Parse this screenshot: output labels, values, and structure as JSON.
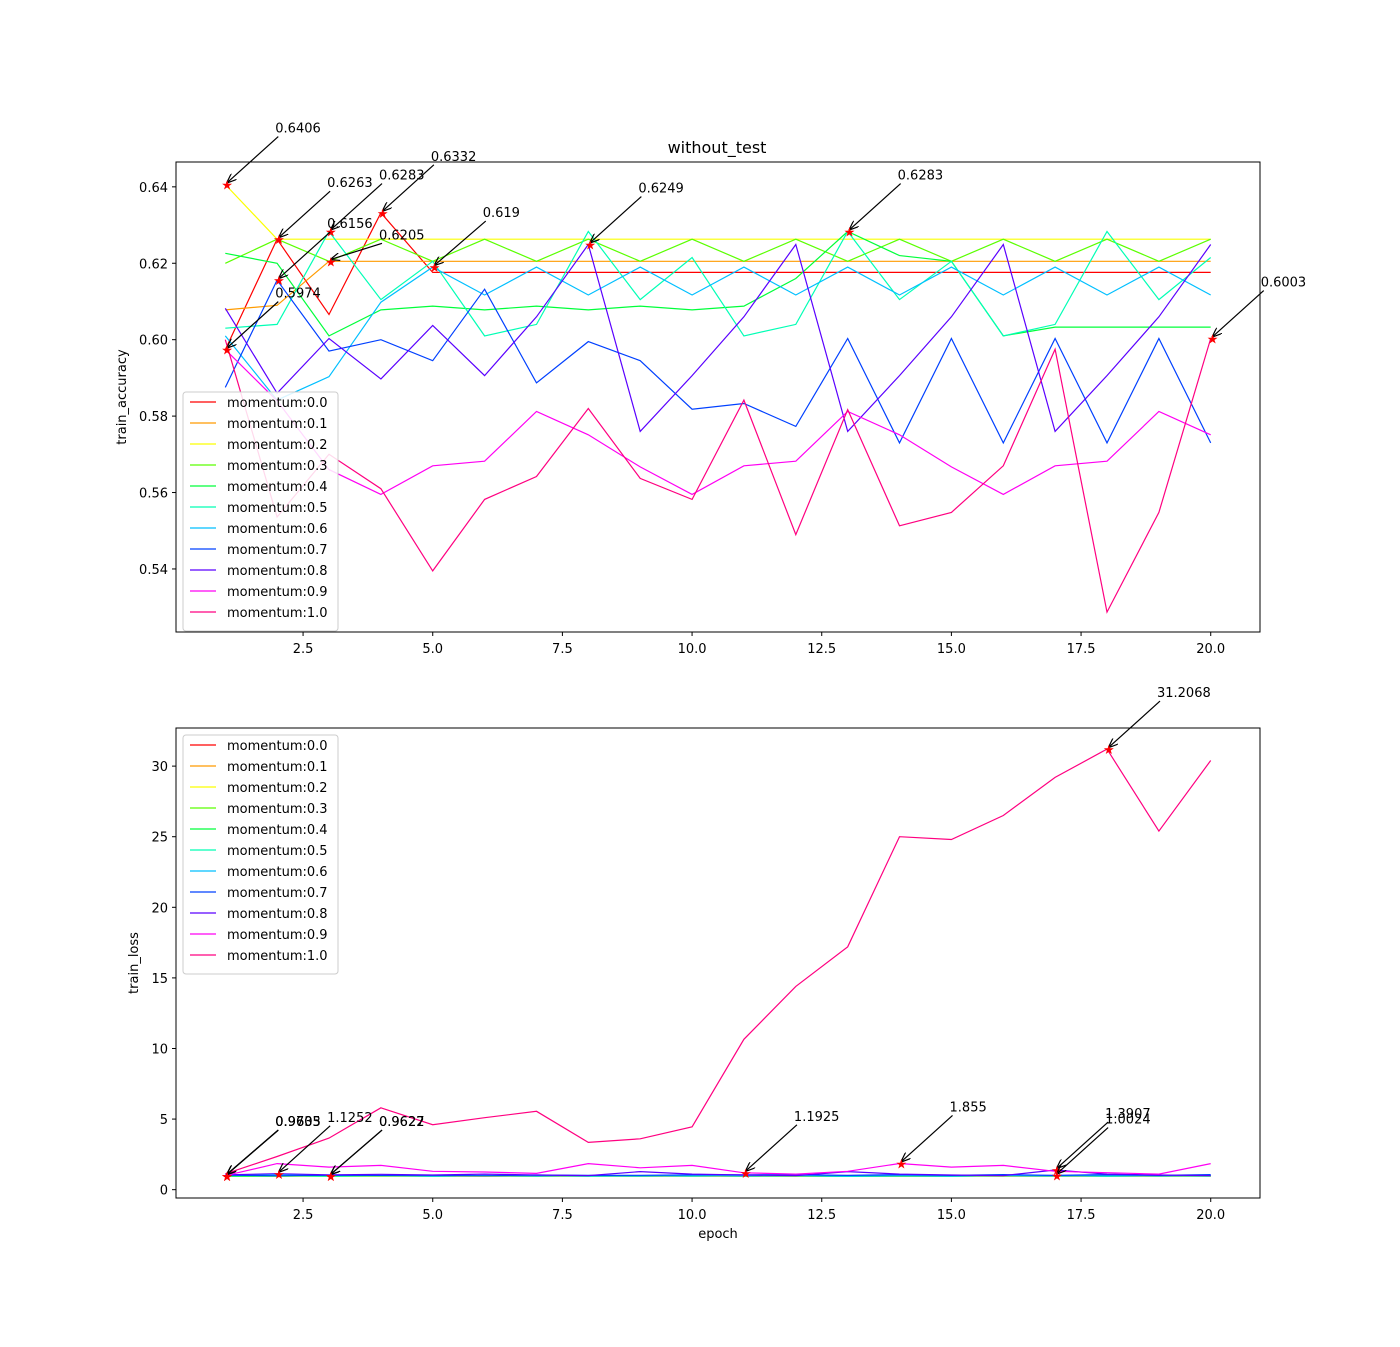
{
  "figure_title": "without_test",
  "chart_data": [
    {
      "type": "line",
      "title": "without_test",
      "xlabel": "",
      "ylabel": "train_accuracy",
      "xlim": [
        0.05,
        20.95
      ],
      "ylim": [
        0.5235,
        0.6465
      ],
      "xticks": [
        2.5,
        5.0,
        7.5,
        10.0,
        12.5,
        15.0,
        17.5,
        20.0
      ],
      "xtick_labels": [
        "2.5",
        "5.0",
        "7.5",
        "10.0",
        "12.5",
        "15.0",
        "17.5",
        "20.0"
      ],
      "yticks": [
        0.54,
        0.56,
        0.58,
        0.6,
        0.62,
        0.64
      ],
      "ytick_labels": [
        "0.54",
        "0.56",
        "0.58",
        "0.60",
        "0.62",
        "0.64"
      ],
      "legend_position": "lower-left",
      "x": [
        1,
        2,
        3,
        4,
        5,
        6,
        7,
        8,
        9,
        10,
        11,
        12,
        13,
        14,
        15,
        16,
        17,
        18,
        19,
        20
      ],
      "series": [
        {
          "name": "momentum:0.0",
          "color": "#ff0000",
          "values": [
            0.5974,
            0.6263,
            0.6066,
            0.6332,
            0.6176,
            0.6176,
            0.6176,
            0.6176,
            0.6176,
            0.6176,
            0.6176,
            0.6176,
            0.6176,
            0.6176,
            0.6176,
            0.6176,
            0.6176,
            0.6176,
            0.6176,
            0.6176
          ]
        },
        {
          "name": "momentum:0.1",
          "color": "#ff9b00",
          "values": [
            0.6078,
            0.609,
            0.6205,
            0.6205,
            0.6205,
            0.6205,
            0.6205,
            0.6205,
            0.6205,
            0.6205,
            0.6205,
            0.6205,
            0.6205,
            0.6205,
            0.6205,
            0.6205,
            0.6205,
            0.6205,
            0.6205,
            0.6205
          ]
        },
        {
          "name": "momentum:0.2",
          "color": "#fcff00",
          "values": [
            0.6406,
            0.6263,
            0.6263,
            0.6263,
            0.6263,
            0.6263,
            0.6263,
            0.6263,
            0.6263,
            0.6263,
            0.6263,
            0.6263,
            0.6263,
            0.6263,
            0.6263,
            0.6263,
            0.6263,
            0.6263,
            0.6263,
            0.6263
          ]
        },
        {
          "name": "momentum:0.3",
          "color": "#5aff00",
          "values": [
            0.62,
            0.6263,
            0.6205,
            0.6263,
            0.6205,
            0.6263,
            0.6205,
            0.6263,
            0.6205,
            0.6263,
            0.6205,
            0.6263,
            0.6205,
            0.6263,
            0.6205,
            0.6263,
            0.6205,
            0.6263,
            0.6205,
            0.6263
          ]
        },
        {
          "name": "momentum:0.4",
          "color": "#00ff3a",
          "values": [
            0.6226,
            0.62,
            0.601,
            0.6078,
            0.6088,
            0.6078,
            0.6088,
            0.6078,
            0.6088,
            0.6078,
            0.6088,
            0.616,
            0.6283,
            0.622,
            0.6205,
            0.601,
            0.6033,
            0.6033,
            0.6033,
            0.6033
          ]
        },
        {
          "name": "momentum:0.5",
          "color": "#00ffb5",
          "values": [
            0.603,
            0.604,
            0.6283,
            0.6105,
            0.6205,
            0.601,
            0.604,
            0.6283,
            0.6105,
            0.6215,
            0.601,
            0.604,
            0.6283,
            0.6105,
            0.6205,
            0.601,
            0.604,
            0.6283,
            0.6105,
            0.6215
          ]
        },
        {
          "name": "momentum:0.6",
          "color": "#00bfff",
          "values": [
            0.601,
            0.5842,
            0.5903,
            0.6098,
            0.619,
            0.6117,
            0.619,
            0.6117,
            0.619,
            0.6117,
            0.619,
            0.6117,
            0.619,
            0.6117,
            0.619,
            0.6117,
            0.619,
            0.6117,
            0.619,
            0.6117
          ]
        },
        {
          "name": "momentum:0.7",
          "color": "#0040ff",
          "values": [
            0.5875,
            0.6156,
            0.597,
            0.6,
            0.5945,
            0.6132,
            0.5887,
            0.5995,
            0.5945,
            0.5818,
            0.5833,
            0.5773,
            0.6003,
            0.573,
            0.6003,
            0.573,
            0.6003,
            0.573,
            0.6003,
            0.573
          ]
        },
        {
          "name": "momentum:0.8",
          "color": "#5a00ff",
          "values": [
            0.6082,
            0.586,
            0.6003,
            0.5897,
            0.6037,
            0.5906,
            0.606,
            0.6249,
            0.576,
            0.5906,
            0.606,
            0.6249,
            0.576,
            0.5906,
            0.606,
            0.6249,
            0.576,
            0.5906,
            0.606,
            0.6249
          ]
        },
        {
          "name": "momentum:0.9",
          "color": "#ff00f3",
          "values": [
            0.5974,
            0.584,
            0.566,
            0.5595,
            0.567,
            0.5682,
            0.5812,
            0.5751,
            0.5667,
            0.5595,
            0.567,
            0.5682,
            0.5812,
            0.5751,
            0.5667,
            0.5595,
            0.567,
            0.5682,
            0.5812,
            0.5751
          ]
        },
        {
          "name": "momentum:1.0",
          "color": "#ff0080",
          "values": [
            0.6,
            0.5536,
            0.57,
            0.561,
            0.5395,
            0.5582,
            0.5642,
            0.582,
            0.5637,
            0.5582,
            0.5842,
            0.549,
            0.5817,
            0.5513,
            0.5548,
            0.567,
            0.5975,
            0.5287,
            0.5548,
            0.6003
          ]
        }
      ],
      "markers": [
        {
          "x": 1,
          "y": 0.6406,
          "label": "0.6406"
        },
        {
          "x": 2,
          "y": 0.6263,
          "label": "0.6263"
        },
        {
          "x": 3,
          "y": 0.6283,
          "label": "0.6283"
        },
        {
          "x": 4,
          "y": 0.6332,
          "label": "0.6332"
        },
        {
          "x": 3,
          "y": 0.6205,
          "label": "0.6205"
        },
        {
          "x": 2,
          "y": 0.6156,
          "label": "0.6156"
        },
        {
          "x": 5,
          "y": 0.619,
          "label": "0.619"
        },
        {
          "x": 8,
          "y": 0.6249,
          "label": "0.6249"
        },
        {
          "x": 13,
          "y": 0.6283,
          "label": "0.6283"
        },
        {
          "x": 1,
          "y": 0.5974,
          "label": "0.5974"
        },
        {
          "x": 20,
          "y": 0.6003,
          "label": "0.6003"
        }
      ]
    },
    {
      "type": "line",
      "title": "",
      "xlabel": "epoch",
      "ylabel": "train_loss",
      "xlim": [
        0.05,
        20.95
      ],
      "ylim": [
        -0.59,
        32.7
      ],
      "xticks": [
        2.5,
        5.0,
        7.5,
        10.0,
        12.5,
        15.0,
        17.5,
        20.0
      ],
      "xtick_labels": [
        "2.5",
        "5.0",
        "7.5",
        "10.0",
        "12.5",
        "15.0",
        "17.5",
        "20.0"
      ],
      "yticks": [
        0,
        5,
        10,
        15,
        20,
        25,
        30
      ],
      "ytick_labels": [
        "0",
        "5",
        "10",
        "15",
        "20",
        "25",
        "30"
      ],
      "legend_position": "upper-left",
      "x": [
        1,
        2,
        3,
        4,
        5,
        6,
        7,
        8,
        9,
        10,
        11,
        12,
        13,
        14,
        15,
        16,
        17,
        18,
        19,
        20
      ],
      "series": [
        {
          "name": "momentum:0.0",
          "color": "#ff0000",
          "values": [
            0.9603,
            1.02,
            0.9622,
            0.98,
            0.97,
            0.97,
            0.97,
            0.97,
            0.97,
            0.97,
            0.97,
            0.97,
            0.97,
            0.97,
            0.97,
            0.97,
            0.97,
            0.97,
            0.97,
            0.97
          ]
        },
        {
          "name": "momentum:0.1",
          "color": "#ff9b00",
          "values": [
            0.9735,
            0.99,
            0.9627,
            0.96,
            0.96,
            0.96,
            0.96,
            0.96,
            0.96,
            0.96,
            0.96,
            0.96,
            0.96,
            0.96,
            0.96,
            0.96,
            0.96,
            0.96,
            0.96,
            0.96
          ]
        },
        {
          "name": "momentum:0.2",
          "color": "#fcff00",
          "values": [
            0.9605,
            0.95,
            0.95,
            0.95,
            0.95,
            0.95,
            0.95,
            0.95,
            0.95,
            0.95,
            0.95,
            0.95,
            0.95,
            0.95,
            0.95,
            0.95,
            0.95,
            0.95,
            0.95,
            0.95
          ]
        },
        {
          "name": "momentum:0.3",
          "color": "#5aff00",
          "values": [
            0.97,
            0.98,
            0.97,
            0.98,
            0.97,
            0.98,
            0.97,
            0.98,
            0.97,
            0.98,
            0.97,
            0.98,
            0.97,
            0.98,
            0.97,
            0.98,
            0.97,
            0.98,
            0.97,
            0.98
          ]
        },
        {
          "name": "momentum:0.4",
          "color": "#00ff3a",
          "values": [
            0.95,
            0.96,
            1.0,
            0.98,
            0.97,
            0.98,
            0.97,
            0.98,
            0.97,
            0.98,
            0.97,
            0.97,
            0.95,
            0.96,
            0.96,
            1.0,
            1.0,
            1.0,
            1.0,
            1.0
          ]
        },
        {
          "name": "momentum:0.5",
          "color": "#00ffb5",
          "values": [
            1.0,
            1.0,
            0.95,
            0.98,
            0.96,
            1.0,
            1.0,
            0.95,
            0.98,
            0.96,
            1.0,
            1.0,
            0.95,
            0.98,
            0.96,
            1.0,
            1.0,
            0.95,
            0.98,
            0.96
          ]
        },
        {
          "name": "momentum:0.6",
          "color": "#00bfff",
          "values": [
            1.0,
            1.05,
            1.03,
            0.99,
            0.97,
            0.98,
            0.97,
            0.98,
            0.97,
            0.98,
            0.97,
            0.98,
            0.97,
            0.98,
            0.97,
            0.98,
            0.97,
            0.98,
            0.97,
            0.98
          ]
        },
        {
          "name": "momentum:0.7",
          "color": "#0040ff",
          "values": [
            1.03,
            0.98,
            1.02,
            1.01,
            1.02,
            0.98,
            1.04,
            1.01,
            1.02,
            1.05,
            1.05,
            1.06,
            1.01,
            1.07,
            1.01,
            1.07,
            1.01,
            1.07,
            1.01,
            1.07
          ]
        },
        {
          "name": "momentum:0.8",
          "color": "#5a00ff",
          "values": [
            1.05,
            1.13,
            1.05,
            1.09,
            1.04,
            1.1,
            1.04,
            1.0,
            1.28,
            1.1,
            1.04,
            1.0,
            1.28,
            1.1,
            1.04,
            1.0,
            1.3907,
            1.1,
            1.04,
            1.0
          ]
        },
        {
          "name": "momentum:0.9",
          "color": "#ff00f3",
          "values": [
            1.0,
            1.85,
            1.6,
            1.72,
            1.3,
            1.25,
            1.15,
            1.85,
            1.55,
            1.72,
            1.1925,
            1.1,
            1.3,
            1.855,
            1.6,
            1.72,
            1.3,
            1.2,
            1.1,
            1.85
          ]
        },
        {
          "name": "momentum:1.0",
          "color": "#ff0080",
          "values": [
            1.1252,
            2.35,
            3.65,
            5.8,
            4.6,
            5.1,
            5.55,
            3.35,
            3.6,
            4.45,
            10.65,
            14.4,
            17.2,
            25.0,
            24.8,
            26.5,
            29.2,
            31.2068,
            25.4,
            30.4
          ]
        }
      ],
      "markers": [
        {
          "x": 1,
          "y": 0.9735,
          "label": "0.9735"
        },
        {
          "x": 1,
          "y": 0.9605,
          "label": "0.9605"
        },
        {
          "x": 1,
          "y": 0.9603,
          "label": "0.9603"
        },
        {
          "x": 2,
          "y": 1.1252,
          "label": "1.1252"
        },
        {
          "x": 3,
          "y": 0.9627,
          "label": "0.9627"
        },
        {
          "x": 3,
          "y": 0.9622,
          "label": "0.9622"
        },
        {
          "x": 11,
          "y": 1.1925,
          "label": "1.1925"
        },
        {
          "x": 14,
          "y": 1.855,
          "label": "1.855"
        },
        {
          "x": 17,
          "y": 1.3907,
          "label": "1.3907"
        },
        {
          "x": 17,
          "y": 1.0024,
          "label": "1.0024"
        },
        {
          "x": 18,
          "y": 31.2068,
          "label": "31.2068"
        }
      ]
    }
  ]
}
